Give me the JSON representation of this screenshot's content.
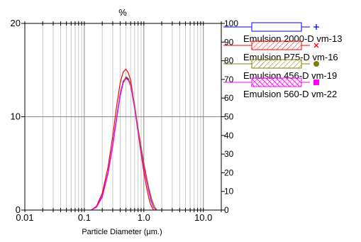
{
  "chart_data": {
    "type": "line",
    "title": "%",
    "xlabel": "Particle Diameter (µm.)",
    "ylabel": "",
    "x_scale": "log",
    "xlim": [
      0.01,
      20
    ],
    "ylim": [
      0,
      20
    ],
    "y2lim": [
      0,
      100
    ],
    "grid": true,
    "legend_position": "right",
    "x_tick_labels": [
      "0.01",
      "0.1",
      "1.0",
      "10.0"
    ],
    "y_tick_labels": [
      "0",
      "10",
      "20"
    ],
    "y2_tick_labels": [
      "0",
      "10",
      "20",
      "30",
      "40",
      "50",
      "60",
      "70",
      "80",
      "90",
      "100"
    ],
    "series": [
      {
        "name": "Emulsion 2000-D vm-13",
        "color": "#0000ff",
        "x": [
          0.13,
          0.16,
          0.2,
          0.25,
          0.3,
          0.35,
          0.4,
          0.45,
          0.5,
          0.55,
          0.6,
          0.7,
          0.8,
          0.9,
          1.0,
          1.1,
          1.2,
          1.3,
          1.45,
          1.6
        ],
        "y": [
          0,
          0.3,
          1.5,
          4.0,
          7.0,
          10.0,
          12.4,
          13.8,
          14.2,
          14.0,
          13.4,
          11.0,
          8.4,
          6.3,
          4.7,
          3.4,
          2.2,
          1.2,
          0.3,
          0
        ]
      },
      {
        "name": "Emulsion P75-D vm-16",
        "color": "#ff0000",
        "x": [
          0.13,
          0.16,
          0.2,
          0.25,
          0.3,
          0.35,
          0.4,
          0.45,
          0.5,
          0.55,
          0.6,
          0.7,
          0.8,
          0.9,
          1.0,
          1.1,
          1.2,
          1.3,
          1.45
        ],
        "y": [
          0,
          0.4,
          1.8,
          4.6,
          7.9,
          11.2,
          13.6,
          14.8,
          15.1,
          14.7,
          13.9,
          11.2,
          8.3,
          6.0,
          4.1,
          2.6,
          1.4,
          0.6,
          0
        ]
      },
      {
        "name": "Emulsion 456-D vm-19",
        "color": "#808000",
        "x": [
          0.13,
          0.16,
          0.2,
          0.25,
          0.3,
          0.35,
          0.4,
          0.45,
          0.5,
          0.55,
          0.6,
          0.7,
          0.8,
          0.9,
          1.0,
          1.1,
          1.2,
          1.35,
          1.5,
          1.65
        ],
        "y": [
          0,
          0.3,
          1.4,
          3.9,
          6.9,
          9.9,
          12.3,
          13.7,
          14.3,
          14.1,
          13.5,
          11.3,
          8.8,
          6.8,
          5.1,
          3.7,
          2.5,
          1.2,
          0.4,
          0
        ]
      },
      {
        "name": "Emulsion 560-D vm-22",
        "color": "#ff00ff",
        "x": [
          0.13,
          0.16,
          0.2,
          0.25,
          0.3,
          0.35,
          0.4,
          0.45,
          0.5,
          0.55,
          0.6,
          0.7,
          0.8,
          0.9,
          1.0,
          1.1,
          1.2,
          1.3,
          1.45,
          1.6
        ],
        "y": [
          0,
          0.3,
          1.4,
          3.9,
          6.8,
          9.8,
          12.2,
          13.6,
          14.1,
          13.9,
          13.3,
          10.9,
          8.3,
          6.2,
          4.6,
          3.3,
          2.1,
          1.1,
          0.3,
          0
        ]
      }
    ]
  }
}
